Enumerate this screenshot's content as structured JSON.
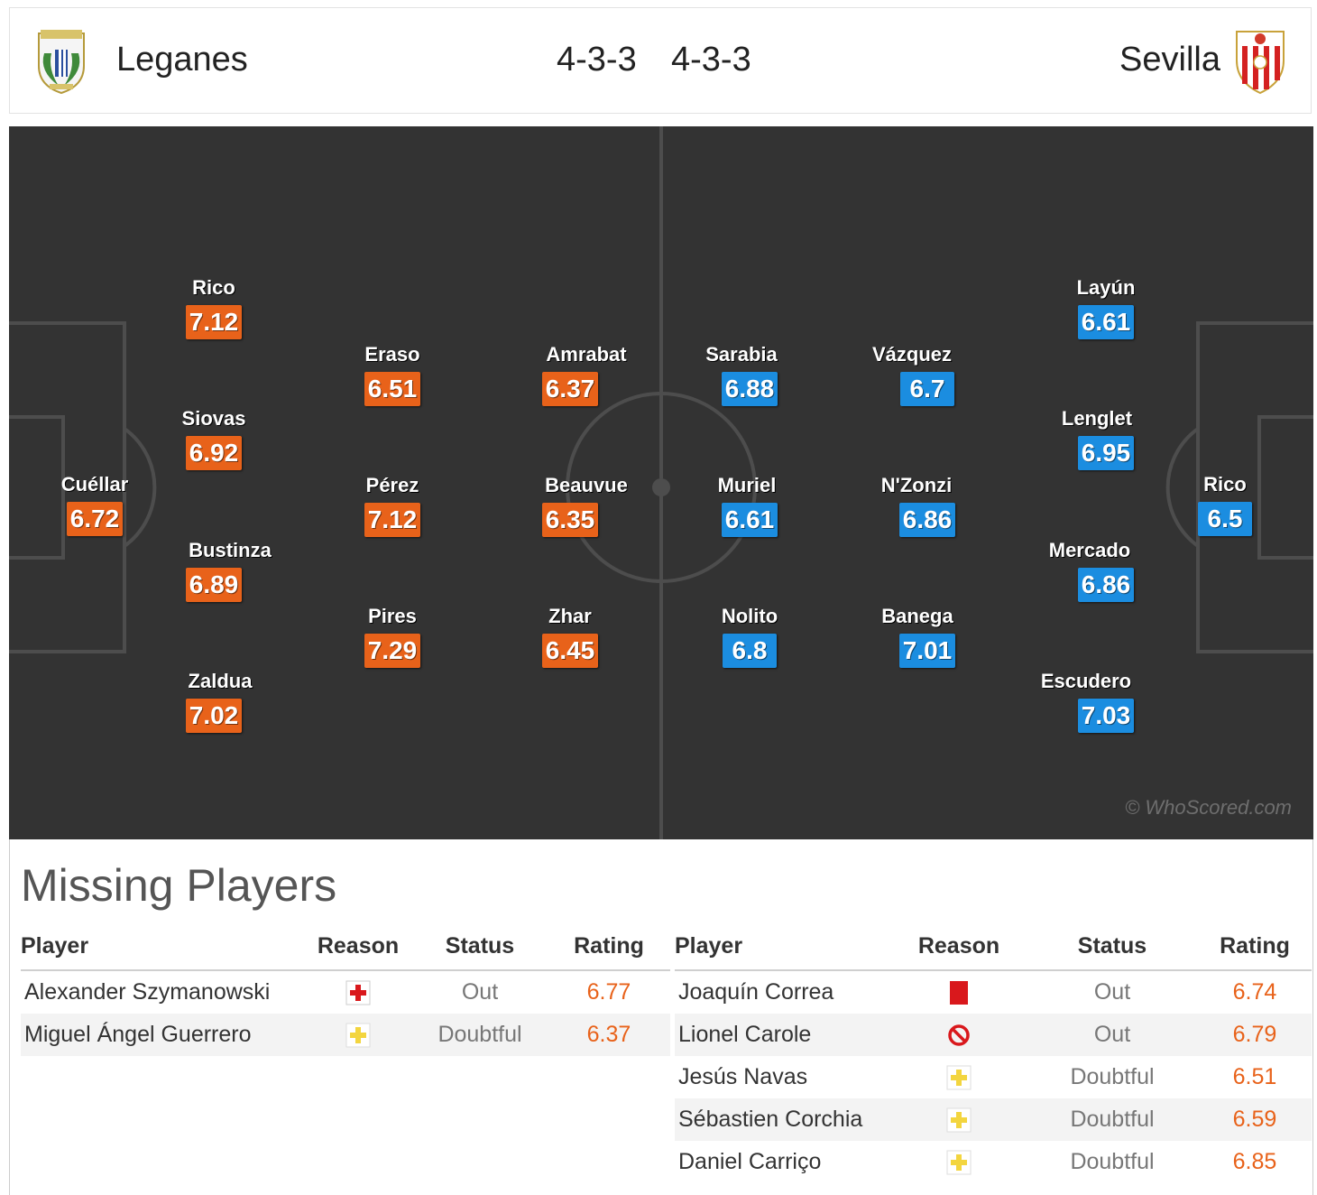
{
  "header": {
    "home_team": "Leganes",
    "away_team": "Sevilla",
    "home_formation": "4-3-3",
    "away_formation": "4-3-3"
  },
  "colors": {
    "home_rating": "#e8621a",
    "away_rating": "#1b8de0",
    "pitch": "#333333"
  },
  "lineup": {
    "home": [
      {
        "name": "Cuéllar",
        "rating": "6.72"
      },
      {
        "name": "Rico",
        "rating": "7.12"
      },
      {
        "name": "Siovas",
        "rating": "6.92"
      },
      {
        "name": "Bustinza",
        "rating": "6.89"
      },
      {
        "name": "Zaldua",
        "rating": "7.02"
      },
      {
        "name": "Eraso",
        "rating": "6.51"
      },
      {
        "name": "Pérez",
        "rating": "7.12"
      },
      {
        "name": "Pires",
        "rating": "7.29"
      },
      {
        "name": "Amrabat",
        "rating": "6.37"
      },
      {
        "name": "Beauvue",
        "rating": "6.35"
      },
      {
        "name": "Zhar",
        "rating": "6.45"
      }
    ],
    "away": [
      {
        "name": "Rico",
        "rating": "6.5"
      },
      {
        "name": "Layún",
        "rating": "6.61"
      },
      {
        "name": "Lenglet",
        "rating": "6.95"
      },
      {
        "name": "Mercado",
        "rating": "6.86"
      },
      {
        "name": "Escudero",
        "rating": "7.03"
      },
      {
        "name": "Vázquez",
        "rating": "6.7"
      },
      {
        "name": "N'Zonzi",
        "rating": "6.86"
      },
      {
        "name": "Banega",
        "rating": "7.01"
      },
      {
        "name": "Sarabia",
        "rating": "6.88"
      },
      {
        "name": "Muriel",
        "rating": "6.61"
      },
      {
        "name": "Nolito",
        "rating": "6.8"
      }
    ]
  },
  "watermark": "© WhoScored.com",
  "missing": {
    "title": "Missing Players",
    "columns": {
      "player": "Player",
      "reason": "Reason",
      "status": "Status",
      "rating": "Rating"
    },
    "home": [
      {
        "player": "Alexander Szymanowski",
        "reason_icon": "injury-icon",
        "status": "Out",
        "rating": "6.77"
      },
      {
        "player": "Miguel Ángel Guerrero",
        "reason_icon": "doubtful-icon",
        "status": "Doubtful",
        "rating": "6.37"
      }
    ],
    "away": [
      {
        "player": "Joaquín Correa",
        "reason_icon": "red-card-icon",
        "status": "Out",
        "rating": "6.74"
      },
      {
        "player": "Lionel Carole",
        "reason_icon": "suspended-icon",
        "status": "Out",
        "rating": "6.79"
      },
      {
        "player": "Jesús Navas",
        "reason_icon": "doubtful-icon",
        "status": "Doubtful",
        "rating": "6.51"
      },
      {
        "player": "Sébastien Corchia",
        "reason_icon": "doubtful-icon",
        "status": "Doubtful",
        "rating": "6.59"
      },
      {
        "player": "Daniel Carriço",
        "reason_icon": "doubtful-icon",
        "status": "Doubtful",
        "rating": "6.85"
      }
    ]
  }
}
